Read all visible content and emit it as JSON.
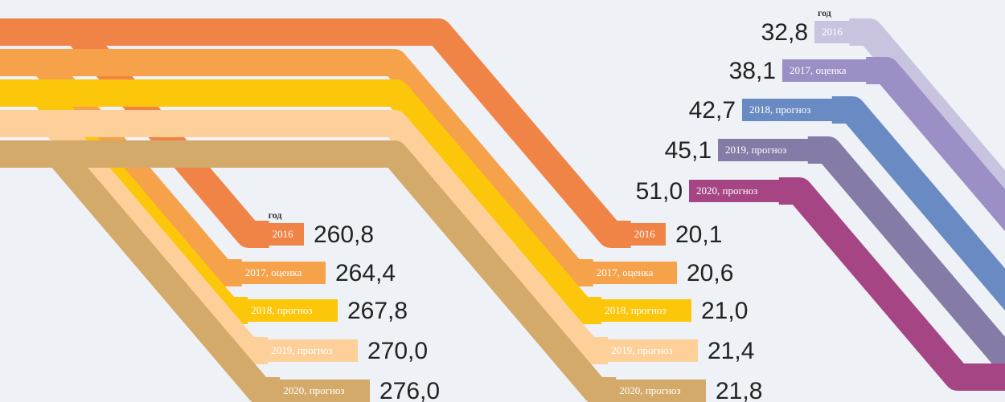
{
  "groups": [
    {
      "heading": "год",
      "items": [
        {
          "year": "2016",
          "value": "260,8"
        },
        {
          "year": "2017, оценка",
          "value": "264,4"
        },
        {
          "year": "2018, прогноз",
          "value": "267,8"
        },
        {
          "year": "2019, прогноз",
          "value": "270,0"
        },
        {
          "year": "2020, прогноз",
          "value": "276,0"
        }
      ]
    },
    {
      "items": [
        {
          "year": "2016",
          "value": "20,1"
        },
        {
          "year": "2017, оценка",
          "value": "20,6"
        },
        {
          "year": "2018, прогноз",
          "value": "21,0"
        },
        {
          "year": "2019, прогноз",
          "value": "21,4"
        },
        {
          "year": "2020, прогноз",
          "value": "21,8"
        }
      ]
    },
    {
      "heading": "год",
      "items": [
        {
          "year": "2016",
          "value": "32,8"
        },
        {
          "year": "2017, оценка",
          "value": "38,1"
        },
        {
          "year": "2018, прогноз",
          "value": "42,7"
        },
        {
          "year": "2019, прогноз",
          "value": "45,1"
        },
        {
          "year": "2020, прогноз",
          "value": "51,0"
        }
      ]
    }
  ]
}
